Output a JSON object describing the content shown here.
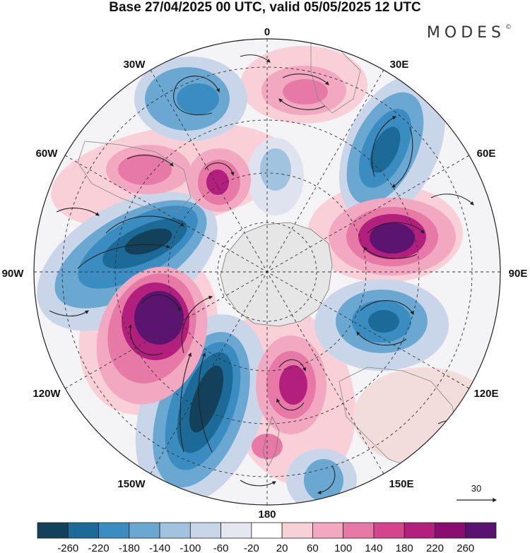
{
  "header": {
    "title": "Base 27/04/2025 00 UTC, valid 05/05/2025 12 UTC",
    "brand": "MODES"
  },
  "longitude_labels": {
    "top": "0",
    "top_right": "30E",
    "right_upper": "60E",
    "right": "90E",
    "right_lower": "120E",
    "bottom_right": "150E",
    "bottom": "180",
    "bottom_left": "150W",
    "left_lower": "120W",
    "left": "90W",
    "left_upper": "60W",
    "top_left": "30W"
  },
  "vector_legend": {
    "value": "30"
  },
  "colorbar": {
    "labels": [
      "-260",
      "-220",
      "-180",
      "-140",
      "-100",
      "-60",
      "-20",
      "20",
      "60",
      "100",
      "140",
      "180",
      "220",
      "260"
    ],
    "colors": [
      "#13405a",
      "#1c6a97",
      "#3a8cc1",
      "#6aa8d2",
      "#a2c3e0",
      "#c9d6ea",
      "#e6e6f0",
      "#ffffff",
      "#f9d0d8",
      "#f1a8c0",
      "#e779a6",
      "#d4458e",
      "#b21f7d",
      "#8a0e6f",
      "#591270"
    ]
  },
  "map_colors": {
    "land": "#e6e6e6",
    "neg_strong": "#1c5a82",
    "pos_strong": "#5b1570"
  }
}
